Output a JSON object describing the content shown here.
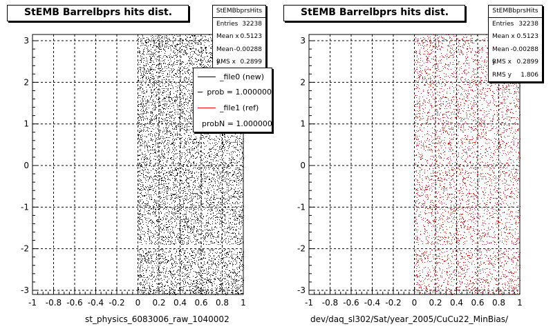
{
  "chart_data": [
    {
      "type": "scatter",
      "title": "StEMB Barrelbprs hits dist.",
      "xlabel": "st_physics_6083006_raw_1040002",
      "ylabel": "",
      "xlim": [
        -1,
        1
      ],
      "ylim": [
        -3.1,
        3.15
      ],
      "xticks": [
        "-1",
        "-0.8",
        "-0.6",
        "-0.4",
        "-0.2",
        "0",
        "0.2",
        "0.4",
        "0.6",
        "0.8",
        "1"
      ],
      "yticks": [
        "-3",
        "-2",
        "-1",
        "0",
        "1",
        "2",
        "3"
      ],
      "grid": true,
      "marker_color": "#000000",
      "x_data_range": [
        0,
        1
      ],
      "y_data_range": [
        -3.1,
        3.15
      ],
      "gap_y": [
        -2.0,
        -1.9
      ],
      "stats": {
        "name": "StEMBbprsHits",
        "rows": [
          {
            "label": "Entries",
            "value": "32238"
          },
          {
            "label": "Mean x",
            "value": "0.5123"
          },
          {
            "label": "Mean y",
            "value": "-0.00288"
          },
          {
            "label": "RMS x",
            "value": "0.2899"
          }
        ]
      },
      "legend": {
        "placement": "top-right",
        "entries": [
          {
            "label": "_file0 (new)",
            "color": "#000000"
          },
          {
            "label": "prob = 1.000000",
            "color": "#000000"
          },
          {
            "label": "_file1 (ref)",
            "color": "#ff0000"
          },
          {
            "label": "probN = 1.000000",
            "color": "#ff0000"
          }
        ]
      }
    },
    {
      "type": "scatter",
      "title": "StEMB Barrelbprs hits dist.",
      "xlabel": "dev/daq_sl302/Sat/year_2005/CuCu22_MinBias/",
      "ylabel": "",
      "xlim": [
        -1,
        1
      ],
      "ylim": [
        -3.1,
        3.15
      ],
      "xticks": [
        "-1",
        "-0.8",
        "-0.6",
        "-0.4",
        "-0.2",
        "0",
        "0.2",
        "0.4",
        "0.6",
        "0.8",
        "1"
      ],
      "yticks": [
        "-3",
        "-2",
        "-1",
        "0",
        "1",
        "2",
        "3"
      ],
      "grid": true,
      "marker_color": "#ff0000",
      "x_data_range": [
        0,
        1
      ],
      "y_data_range": [
        -3.1,
        3.15
      ],
      "gap_y": [
        -2.0,
        -1.9
      ],
      "stats": {
        "name": "StEMBbprsHits",
        "rows": [
          {
            "label": "Entries",
            "value": "32238"
          },
          {
            "label": "Mean x",
            "value": "0.5123"
          },
          {
            "label": "Mean y",
            "value": "-0.00288"
          },
          {
            "label": "RMS x",
            "value": "0.2899"
          },
          {
            "label": "RMS y",
            "value": "1.806"
          }
        ]
      }
    }
  ]
}
